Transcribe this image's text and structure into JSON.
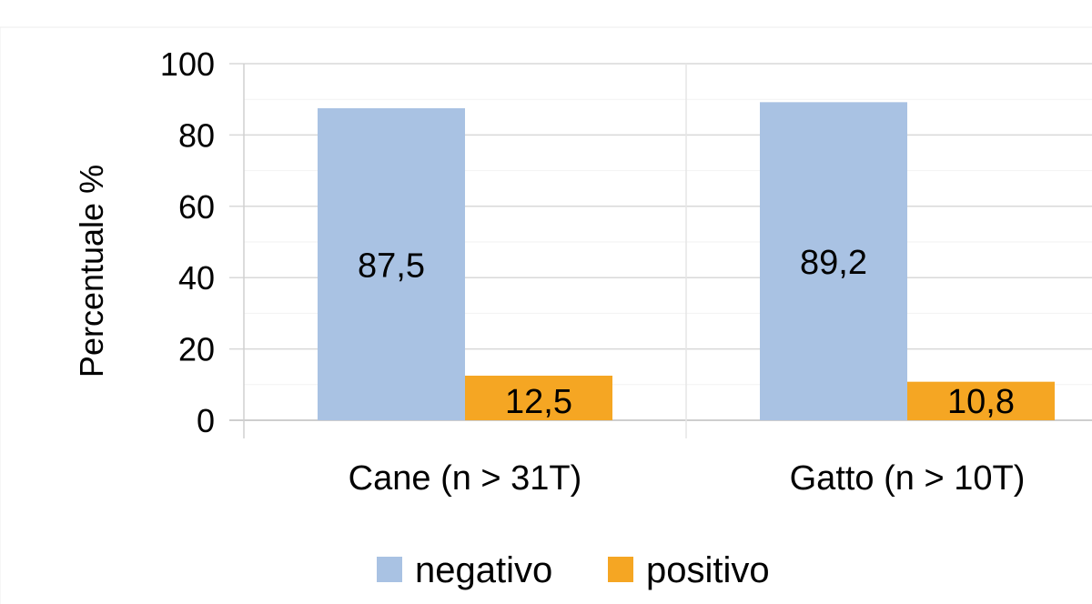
{
  "chart_data": {
    "type": "bar",
    "title": "",
    "xlabel": "",
    "ylabel": "Percentuale %",
    "ylim": [
      0,
      100
    ],
    "yticks": [
      0,
      20,
      40,
      60,
      80,
      100
    ],
    "categories": [
      "Cane (n > 31T)",
      "Gatto (n > 10T)"
    ],
    "series": [
      {
        "name": "negativo",
        "color": "#a9c2e3",
        "values": [
          87.5,
          89.2
        ],
        "labels": [
          "87,5",
          "89,2"
        ]
      },
      {
        "name": "positivo",
        "color": "#f5a623",
        "values": [
          12.5,
          10.8
        ],
        "labels": [
          "12,5",
          "10,8"
        ]
      }
    ],
    "grid": true,
    "legend_position": "bottom"
  }
}
